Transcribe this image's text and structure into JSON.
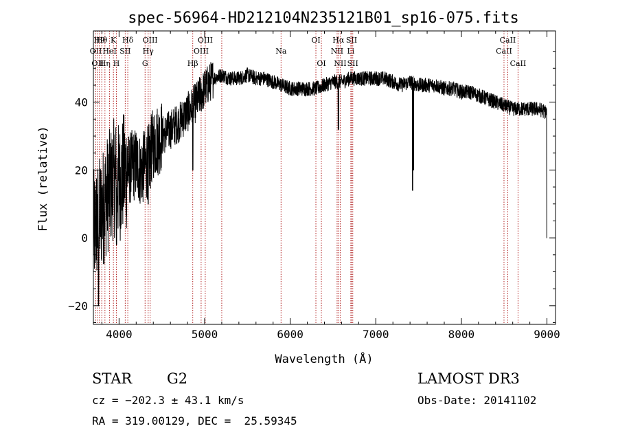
{
  "chart_data": {
    "type": "line",
    "title": "spec-56964-HD212104N235121B01_sp16-075.fits",
    "xlabel": "Wavelength (Å)",
    "ylabel": "Flux (relative)",
    "xlim": [
      3700,
      9100
    ],
    "ylim": [
      -25.5,
      61
    ],
    "xticks": [
      4000,
      5000,
      6000,
      7000,
      8000,
      9000
    ],
    "yticks": [
      -20,
      0,
      20,
      40
    ],
    "grid": false,
    "colors": {
      "spectrum": "#000000",
      "lines": "#b22222",
      "axes": "#000000"
    },
    "spectrum_knots": {
      "x": [
        3700,
        3750,
        3800,
        3850,
        3900,
        3950,
        4000,
        4050,
        4100,
        4150,
        4200,
        4250,
        4300,
        4350,
        4400,
        4500,
        4600,
        4700,
        4800,
        4900,
        5000,
        5100,
        5200,
        5300,
        5400,
        5500,
        5600,
        5700,
        5800,
        5900,
        6000,
        6100,
        6200,
        6300,
        6400,
        6500,
        6600,
        6700,
        6800,
        6900,
        7000,
        7100,
        7200,
        7300,
        7400,
        7500,
        7600,
        7700,
        7800,
        7900,
        8000,
        8100,
        8200,
        8300,
        8400,
        8500,
        8600,
        8700,
        8800,
        8900,
        9000
      ],
      "y": [
        2,
        5,
        8,
        12,
        15,
        18,
        16,
        19,
        20,
        21,
        22,
        20,
        21,
        23,
        28,
        30,
        32,
        34,
        37,
        40,
        44,
        47,
        48,
        47,
        47,
        48,
        47,
        47,
        46,
        45,
        44,
        44,
        44,
        44,
        45,
        46,
        46,
        47,
        47,
        47,
        47,
        47,
        46,
        45,
        46,
        45,
        45,
        45,
        44,
        44,
        43,
        43,
        42,
        41,
        40,
        39,
        38,
        38,
        38,
        38,
        37
      ]
    },
    "spectrum_dips": [
      {
        "x": 3760,
        "y": -20
      },
      {
        "x": 3970,
        "y": -2
      },
      {
        "x": 4340,
        "y": 10
      },
      {
        "x": 4862,
        "y": 20
      },
      {
        "x": 6563,
        "y": 32
      },
      {
        "x": 7430,
        "y": 14
      },
      {
        "x": 7440,
        "y": 20
      },
      {
        "x": 9000,
        "y": 0
      }
    ],
    "line_markers": [
      {
        "x": 3728,
        "label": "OII",
        "row": 2
      },
      {
        "x": 3750,
        "label": "OII",
        "row": 3
      },
      {
        "x": 3770,
        "label": "H9",
        "row": 1
      },
      {
        "x": 3798,
        "label": "Hθ",
        "row": 1
      },
      {
        "x": 3835,
        "label": "Hη",
        "row": 3
      },
      {
        "x": 3889,
        "label": "HeI",
        "row": 2
      },
      {
        "x": 3934,
        "label": "K",
        "row": 1
      },
      {
        "x": 3969,
        "label": "H",
        "row": 3
      },
      {
        "x": 4072,
        "label": "SII",
        "row": 2
      },
      {
        "x": 4102,
        "label": "Hδ",
        "row": 1
      },
      {
        "x": 4304,
        "label": "G",
        "row": 3
      },
      {
        "x": 4340,
        "label": "Hγ",
        "row": 2
      },
      {
        "x": 4363,
        "label": "OIII",
        "row": 1
      },
      {
        "x": 4861,
        "label": "Hβ",
        "row": 3
      },
      {
        "x": 4959,
        "label": "OIII",
        "row": 2
      },
      {
        "x": 5007,
        "label": "OIII",
        "row": 1
      },
      {
        "x": 5200,
        "label": "",
        "row": 0
      },
      {
        "x": 5893,
        "label": "Na",
        "row": 2
      },
      {
        "x": 6300,
        "label": "OI",
        "row": 1
      },
      {
        "x": 6364,
        "label": "OI",
        "row": 3
      },
      {
        "x": 6548,
        "label": "NII",
        "row": 2
      },
      {
        "x": 6563,
        "label": "Hα",
        "row": 1
      },
      {
        "x": 6584,
        "label": "NII",
        "row": 3
      },
      {
        "x": 6708,
        "label": "Li",
        "row": 2
      },
      {
        "x": 6717,
        "label": "SII",
        "row": 1
      },
      {
        "x": 6731,
        "label": "SII",
        "row": 3
      },
      {
        "x": 8498,
        "label": "CaII",
        "row": 2
      },
      {
        "x": 8542,
        "label": "CaII",
        "row": 1
      },
      {
        "x": 8662,
        "label": "CaII",
        "row": 3
      }
    ]
  },
  "info": {
    "object_type": "STAR",
    "subclass": "G2",
    "cz": "cz = −202.3 ± 43.1 km/s",
    "coords": "RA = 319.00129, DEC =  25.59345",
    "survey": "LAMOST DR3",
    "obs_date": "Obs-Date: 20141102"
  }
}
